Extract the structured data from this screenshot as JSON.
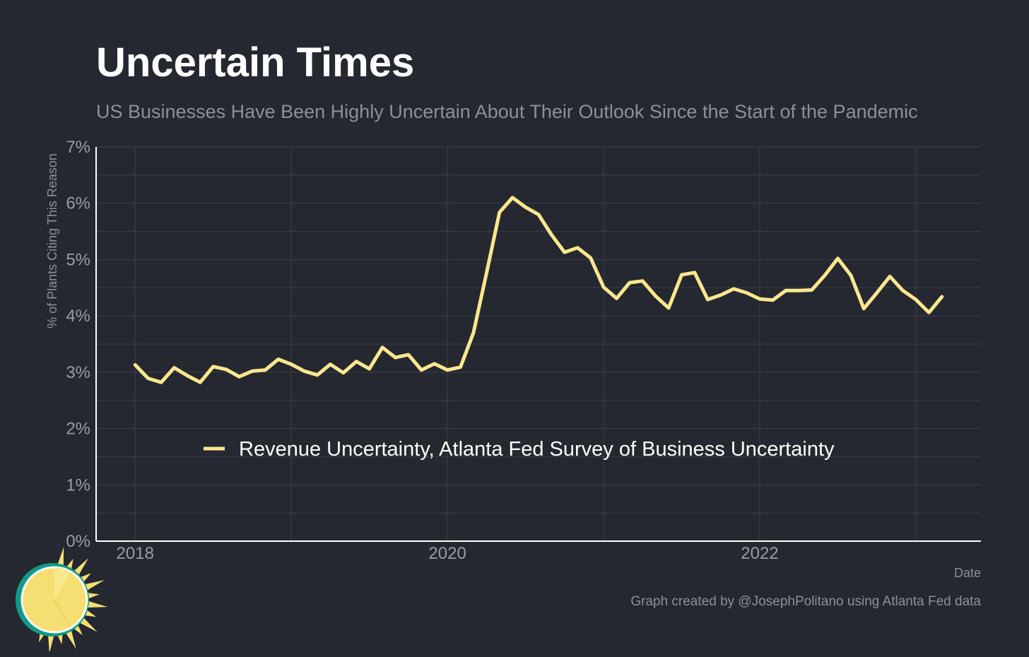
{
  "title": "Uncertain Times",
  "subtitle": "US Businesses Have Been Highly Uncertain About Their Outlook Since the Start of the Pandemic",
  "credit": "Graph created by @JosephPolitano using Atlanta Fed data",
  "logo_icon": "sun-logo-icon",
  "colors": {
    "background": "#252830",
    "line": "#fbe78e",
    "grid": "#3c3f47",
    "axis": "#ffffff",
    "logo_sun": "#f5df72",
    "logo_ring": "#129a89"
  },
  "chart_data": {
    "type": "line",
    "title": "Uncertain Times",
    "subtitle": "US Businesses Have Been Highly Uncertain About Their Outlook Since the Start of the Pandemic",
    "xlabel": "Date",
    "ylabel": "% of Plants Citing This Reason",
    "ylim": [
      0,
      7
    ],
    "xlim": [
      "2017-10",
      "2023-06"
    ],
    "y_ticks": [
      "0%",
      "1%",
      "2%",
      "3%",
      "4%",
      "5%",
      "6%",
      "7%"
    ],
    "y_tick_values": [
      0,
      1,
      2,
      3,
      4,
      5,
      6,
      7
    ],
    "x_ticks": [
      "2018",
      "2020",
      "2022"
    ],
    "x_tick_dates": [
      "2018-01",
      "2020-01",
      "2022-01"
    ],
    "grid": true,
    "legend_position": "bottom-center",
    "series": [
      {
        "name": "Revenue Uncertainty, Atlanta Fed Survey of Business Uncertainty",
        "x": [
          "2018-01",
          "2018-02",
          "2018-03",
          "2018-04",
          "2018-05",
          "2018-06",
          "2018-07",
          "2018-08",
          "2018-09",
          "2018-10",
          "2018-11",
          "2018-12",
          "2019-01",
          "2019-02",
          "2019-03",
          "2019-04",
          "2019-05",
          "2019-06",
          "2019-07",
          "2019-08",
          "2019-09",
          "2019-10",
          "2019-11",
          "2019-12",
          "2020-01",
          "2020-02",
          "2020-03",
          "2020-04",
          "2020-05",
          "2020-06",
          "2020-07",
          "2020-08",
          "2020-09",
          "2020-10",
          "2020-11",
          "2020-12",
          "2021-01",
          "2021-02",
          "2021-03",
          "2021-04",
          "2021-05",
          "2021-06",
          "2021-07",
          "2021-08",
          "2021-09",
          "2021-10",
          "2021-11",
          "2021-12",
          "2022-01",
          "2022-02",
          "2022-03",
          "2022-04",
          "2022-05",
          "2022-06",
          "2022-07",
          "2022-08",
          "2022-09",
          "2022-10",
          "2022-11",
          "2022-12",
          "2023-01",
          "2023-02",
          "2023-03"
        ],
        "values": [
          3.13,
          2.89,
          2.82,
          3.08,
          2.94,
          2.82,
          3.1,
          3.05,
          2.92,
          3.02,
          3.04,
          3.23,
          3.14,
          3.02,
          2.95,
          3.14,
          2.99,
          3.19,
          3.06,
          3.44,
          3.26,
          3.31,
          3.04,
          3.15,
          3.04,
          3.09,
          3.7,
          4.76,
          5.84,
          6.1,
          5.93,
          5.8,
          5.44,
          5.13,
          5.21,
          5.03,
          4.51,
          4.31,
          4.59,
          4.62,
          4.35,
          4.14,
          4.73,
          4.77,
          4.29,
          4.37,
          4.48,
          4.41,
          4.3,
          4.28,
          4.45,
          4.45,
          4.46,
          4.72,
          5.02,
          4.72,
          4.13,
          4.41,
          4.7,
          4.45,
          4.29,
          4.06,
          4.34
        ]
      }
    ]
  }
}
